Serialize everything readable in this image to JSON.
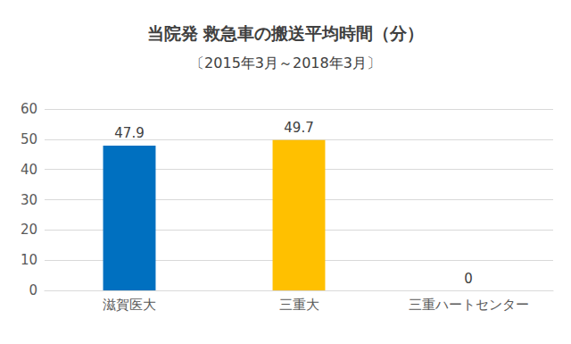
{
  "chart_data": {
    "type": "bar",
    "title": "当院発 救急車の搬送平均時間（分）",
    "subtitle": "〔2015年3月～2018年3月〕",
    "categories": [
      "滋賀医大",
      "三重大",
      "三重ハートセンター"
    ],
    "values": [
      47.9,
      49.7,
      0
    ],
    "colors": [
      "#0070c0",
      "#ffc000",
      "#a5a5a5"
    ],
    "ylim": [
      0,
      60
    ],
    "yticks": [
      0,
      10,
      20,
      30,
      40,
      50,
      60
    ],
    "grid": true,
    "data_labels": true
  }
}
